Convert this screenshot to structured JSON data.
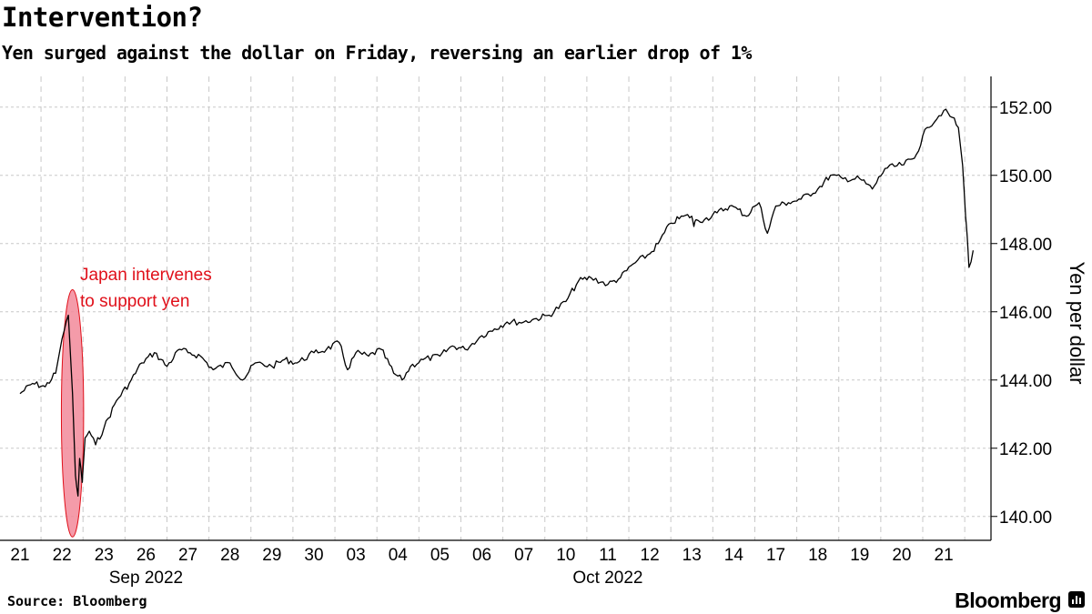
{
  "title": "Intervention?",
  "subtitle": "Yen surged against the dollar on Friday, reversing an earlier drop of 1%",
  "source": "Source: Bloomberg",
  "brand": "Bloomberg",
  "colors": {
    "line": "#000000",
    "annotation": "#e0101a",
    "highlight": "#f28a9a",
    "grid": "#c8c8c8"
  },
  "chart_data": {
    "type": "line",
    "title": "Intervention?",
    "subtitle": "Yen surged against the dollar on Friday, reversing an earlier drop of 1%",
    "ylabel": "Yen per dollar",
    "ylim": [
      139.3,
      152.9
    ],
    "y_axis_position": "right",
    "yticks": [
      "140.00",
      "142.00",
      "144.00",
      "146.00",
      "148.00",
      "150.00",
      "152.00"
    ],
    "x_ticks": [
      "21",
      "22",
      "23",
      "26",
      "27",
      "28",
      "29",
      "30",
      "03",
      "04",
      "05",
      "06",
      "07",
      "10",
      "11",
      "12",
      "13",
      "14",
      "17",
      "18",
      "19",
      "20",
      "21"
    ],
    "month_labels": [
      {
        "label": "Sep 2022",
        "at_tick": 3
      },
      {
        "label": "Oct 2022",
        "at_tick": 14
      }
    ],
    "grid": true,
    "annotation": {
      "text_line1": "Japan intervenes",
      "text_line2": "to support yen",
      "session_start": 1.05,
      "session_end": 1.45
    },
    "series": [
      {
        "x": [
          0.0,
          0.3,
          0.6,
          0.85,
          1.0,
          1.15,
          1.25,
          1.32,
          1.38,
          1.42,
          1.48,
          1.55,
          1.65,
          1.8,
          2.0,
          2.3,
          2.6,
          2.9,
          3.2,
          3.5,
          3.8,
          4.0,
          4.3,
          4.6,
          5.0,
          5.3,
          5.6,
          6.0,
          6.3,
          6.6,
          7.0,
          7.3,
          7.6,
          7.8,
          8.0,
          8.3,
          8.6,
          8.9,
          9.1,
          9.3,
          9.6,
          10.0,
          10.3,
          10.6,
          11.0,
          11.3,
          11.6,
          12.0,
          12.3,
          12.6,
          13.0,
          13.3,
          13.6,
          14.0,
          14.3,
          14.6,
          15.0,
          15.2,
          15.5,
          15.8,
          16.0,
          16.05,
          16.1,
          16.3,
          16.6,
          16.9,
          17.1,
          17.3,
          17.5,
          17.6,
          17.8,
          18.0,
          18.3,
          18.6,
          19.0,
          19.3,
          19.6,
          20.0,
          20.3,
          20.6,
          21.0,
          21.3,
          21.6,
          22.0,
          22.2,
          22.35,
          22.45,
          22.52,
          22.56,
          22.6,
          22.7
        ],
        "values": [
          143.6,
          143.9,
          143.8,
          144.2,
          145.2,
          145.9,
          143.6,
          141.2,
          140.6,
          141.7,
          141.0,
          142.3,
          142.5,
          142.1,
          142.6,
          143.4,
          143.9,
          144.5,
          144.8,
          144.4,
          144.9,
          144.8,
          144.7,
          144.3,
          144.5,
          144.0,
          144.5,
          144.4,
          144.6,
          144.5,
          144.8,
          144.9,
          145.1,
          144.3,
          144.8,
          144.7,
          144.9,
          144.2,
          144.0,
          144.4,
          144.6,
          144.7,
          145.0,
          144.9,
          145.3,
          145.5,
          145.7,
          145.7,
          145.8,
          145.9,
          146.3,
          146.9,
          147.0,
          146.8,
          147.0,
          147.4,
          147.7,
          148.0,
          148.6,
          148.8,
          148.8,
          148.5,
          148.7,
          148.7,
          148.9,
          149.1,
          149.0,
          148.8,
          149.1,
          149.2,
          148.3,
          149.1,
          149.2,
          149.3,
          149.6,
          150.0,
          149.9,
          149.9,
          149.6,
          150.2,
          150.3,
          150.5,
          151.4,
          151.9,
          151.7,
          151.4,
          150.3,
          148.8,
          148.2,
          147.3,
          147.8
        ]
      }
    ]
  }
}
